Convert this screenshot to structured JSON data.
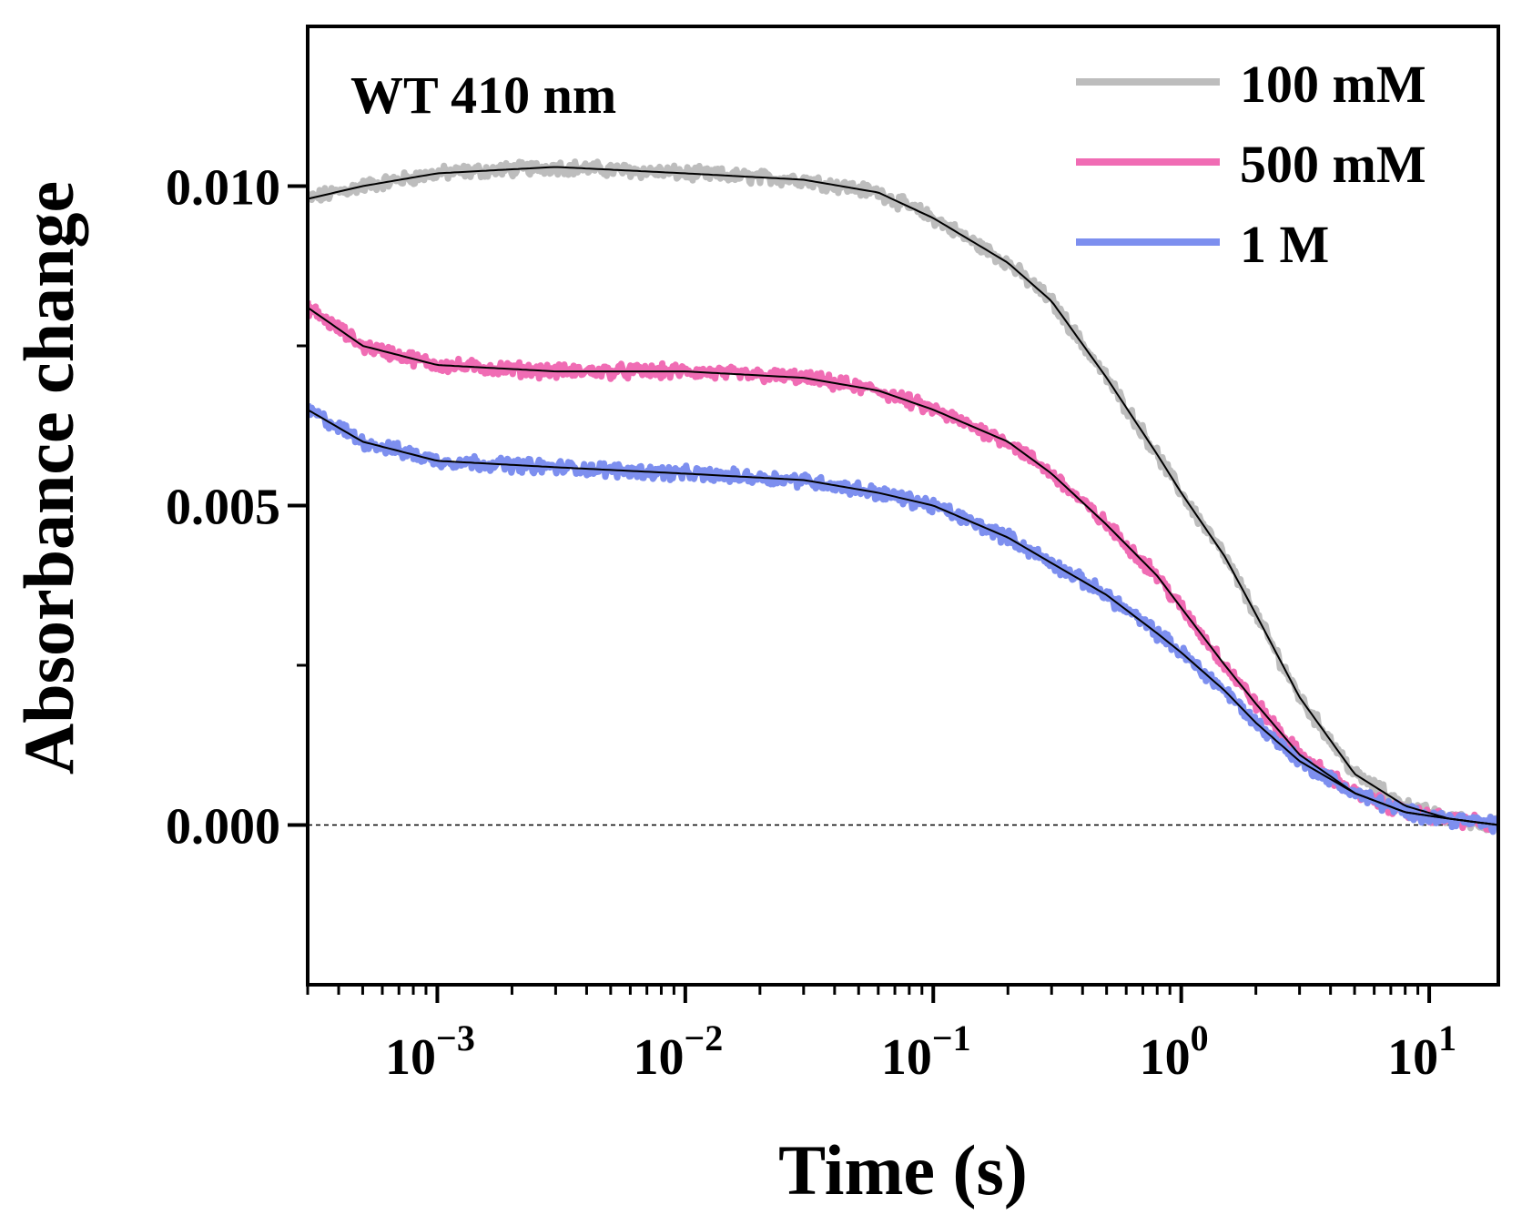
{
  "chart_data": {
    "type": "line",
    "annotation": "WT 410 nm",
    "xlabel": "Time (s)",
    "ylabel": "Absorbance change",
    "xscale": "log",
    "xlim": [
      0.0003,
      19
    ],
    "ylim": [
      -0.0025,
      0.0125
    ],
    "x_ticks": [
      {
        "value": 0.001,
        "base": "10",
        "exp": "−3"
      },
      {
        "value": 0.01,
        "base": "10",
        "exp": "−2"
      },
      {
        "value": 0.1,
        "base": "10",
        "exp": "−1"
      },
      {
        "value": 1,
        "base": "10",
        "exp": "0"
      },
      {
        "value": 10,
        "base": "10",
        "exp": "1"
      }
    ],
    "y_ticks": [
      {
        "value": 0.0,
        "label": "0.000"
      },
      {
        "value": 0.005,
        "label": "0.005"
      },
      {
        "value": 0.01,
        "label": "0.010"
      }
    ],
    "reference_line": {
      "y": 0.0,
      "style": "dashed"
    },
    "legend_position": "top-right",
    "series": [
      {
        "name": "100 mM",
        "color": "#bdbdbd",
        "fit_color": "#000000",
        "data": [
          [
            0.0003,
            0.0098
          ],
          [
            0.0005,
            0.01
          ],
          [
            0.001,
            0.0102
          ],
          [
            0.003,
            0.0103
          ],
          [
            0.01,
            0.0102
          ],
          [
            0.03,
            0.0101
          ],
          [
            0.06,
            0.0099
          ],
          [
            0.1,
            0.0095
          ],
          [
            0.2,
            0.0088
          ],
          [
            0.3,
            0.0082
          ],
          [
            0.5,
            0.007
          ],
          [
            0.8,
            0.0058
          ],
          [
            1.0,
            0.0052
          ],
          [
            1.5,
            0.0042
          ],
          [
            2.0,
            0.0033
          ],
          [
            3.0,
            0.002
          ],
          [
            5.0,
            0.0008
          ],
          [
            8.0,
            0.0003
          ],
          [
            12.0,
            0.0001
          ],
          [
            19.0,
            0.0
          ]
        ]
      },
      {
        "name": "500 mM",
        "color": "#f06cb4",
        "fit_color": "#000000",
        "data": [
          [
            0.0003,
            0.0081
          ],
          [
            0.0005,
            0.0075
          ],
          [
            0.001,
            0.0072
          ],
          [
            0.003,
            0.0071
          ],
          [
            0.01,
            0.0071
          ],
          [
            0.03,
            0.007
          ],
          [
            0.06,
            0.0068
          ],
          [
            0.1,
            0.0065
          ],
          [
            0.2,
            0.006
          ],
          [
            0.3,
            0.0055
          ],
          [
            0.5,
            0.0047
          ],
          [
            0.8,
            0.0039
          ],
          [
            1.0,
            0.0034
          ],
          [
            1.5,
            0.0025
          ],
          [
            2.0,
            0.0019
          ],
          [
            3.0,
            0.0011
          ],
          [
            5.0,
            0.0005
          ],
          [
            8.0,
            0.0002
          ],
          [
            12.0,
            0.0001
          ],
          [
            19.0,
            0.0
          ]
        ]
      },
      {
        "name": "1 M",
        "color": "#7d8fef",
        "fit_color": "#000000",
        "data": [
          [
            0.0003,
            0.0065
          ],
          [
            0.0005,
            0.006
          ],
          [
            0.001,
            0.0057
          ],
          [
            0.003,
            0.0056
          ],
          [
            0.01,
            0.0055
          ],
          [
            0.03,
            0.0054
          ],
          [
            0.06,
            0.0052
          ],
          [
            0.1,
            0.005
          ],
          [
            0.2,
            0.0045
          ],
          [
            0.3,
            0.0041
          ],
          [
            0.5,
            0.0036
          ],
          [
            0.8,
            0.003
          ],
          [
            1.0,
            0.0027
          ],
          [
            1.5,
            0.0021
          ],
          [
            2.0,
            0.0016
          ],
          [
            3.0,
            0.001
          ],
          [
            5.0,
            0.0005
          ],
          [
            8.0,
            0.0002
          ],
          [
            12.0,
            0.0001
          ],
          [
            19.0,
            0.0
          ]
        ]
      }
    ]
  }
}
